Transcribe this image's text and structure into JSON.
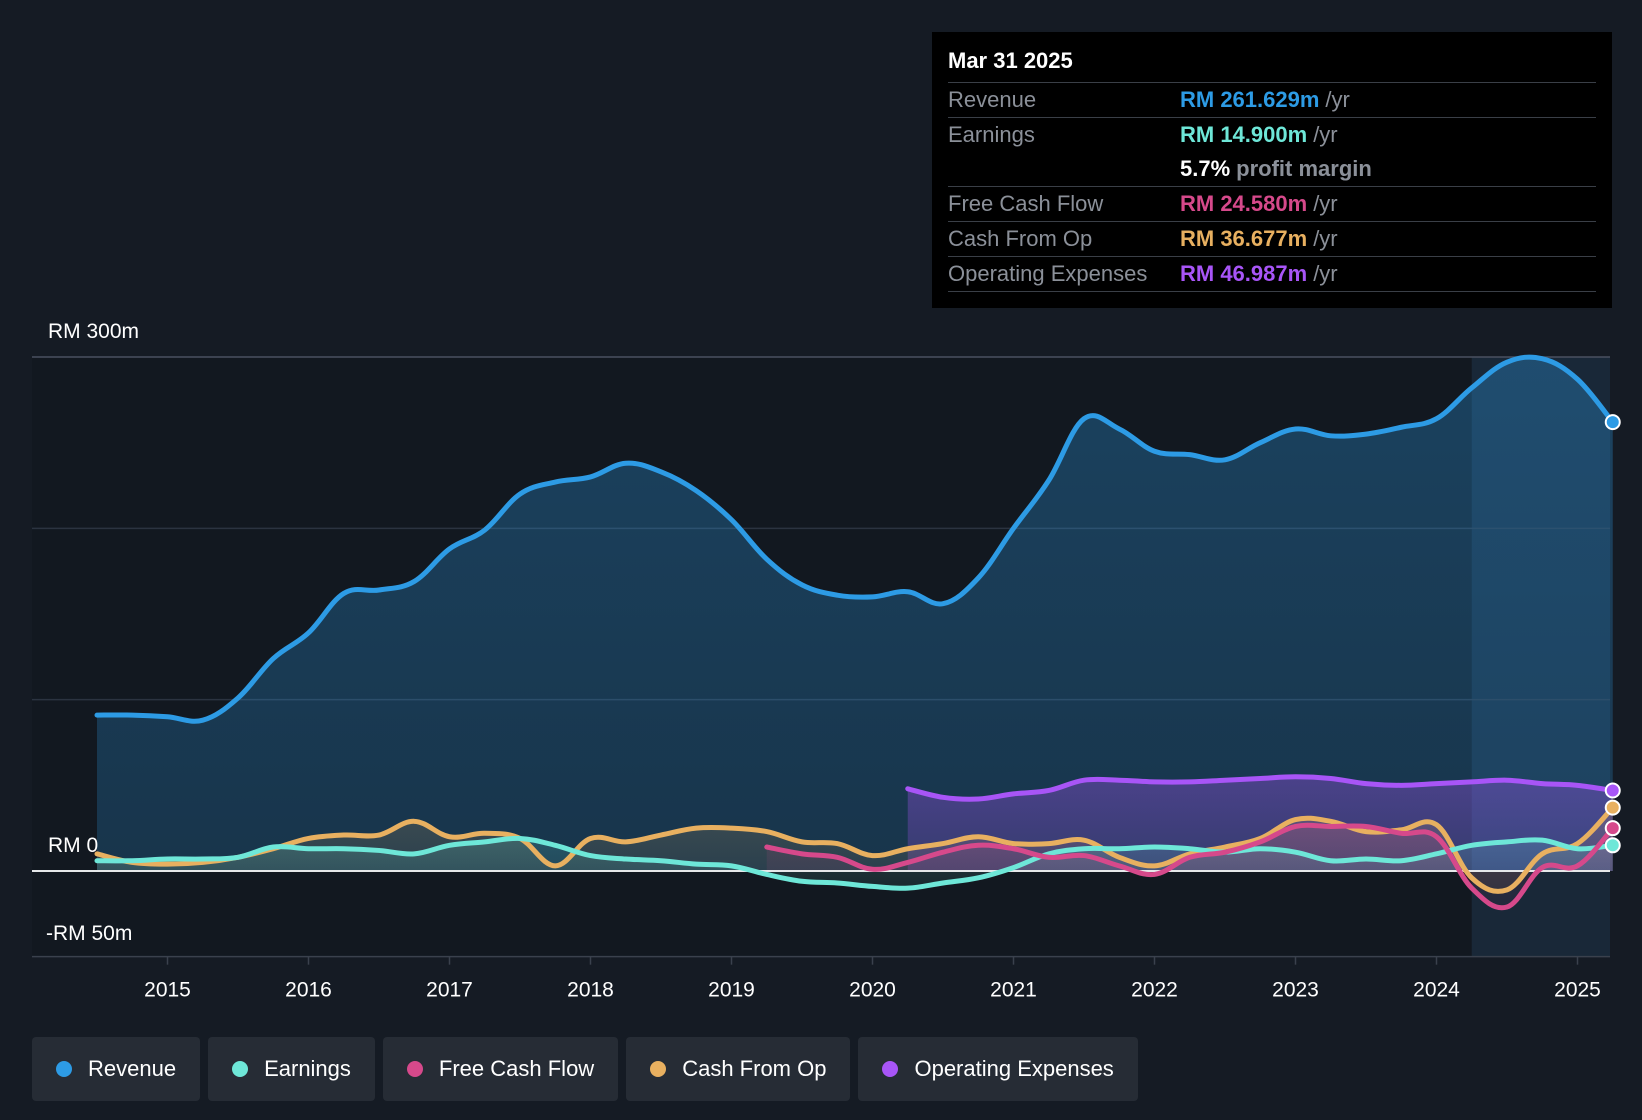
{
  "tooltip": {
    "date": "Mar 31 2025",
    "rows": [
      {
        "label": "Revenue",
        "value": "RM 261.629m",
        "unit": "/yr",
        "color": "#2d9be5"
      },
      {
        "label": "Earnings",
        "value": "RM 14.900m",
        "unit": "/yr",
        "color": "#6ee7d8"
      },
      {
        "label": "",
        "value": "5.7%",
        "unit": "profit margin",
        "color": "#ffffff"
      },
      {
        "label": "Free Cash Flow",
        "value": "RM 24.580m",
        "unit": "/yr",
        "color": "#d6498b"
      },
      {
        "label": "Cash From Op",
        "value": "RM 36.677m",
        "unit": "/yr",
        "color": "#e8b060"
      },
      {
        "label": "Operating Expenses",
        "value": "RM 46.987m",
        "unit": "/yr",
        "color": "#a855f7"
      }
    ]
  },
  "legend": [
    {
      "label": "Revenue",
      "color": "#2d9be5",
      "icon": "revenue-dot-icon"
    },
    {
      "label": "Earnings",
      "color": "#6ee7d8",
      "icon": "earnings-dot-icon"
    },
    {
      "label": "Free Cash Flow",
      "color": "#d6498b",
      "icon": "free-cash-flow-dot-icon"
    },
    {
      "label": "Cash From Op",
      "color": "#e8b060",
      "icon": "cash-from-op-dot-icon"
    },
    {
      "label": "Operating Expenses",
      "color": "#a855f7",
      "icon": "operating-expenses-dot-icon"
    }
  ],
  "chart_data": {
    "type": "area",
    "title": "",
    "xlabel": "",
    "ylabel": "",
    "ylim": [
      -50,
      300
    ],
    "y_tick_labels": [
      "RM 300m",
      "RM 0",
      "-RM 50m"
    ],
    "x_tick_labels": [
      "2015",
      "2016",
      "2017",
      "2018",
      "2019",
      "2020",
      "2021",
      "2022",
      "2023",
      "2024",
      "2025"
    ],
    "highlight_from": 2024.25,
    "series": [
      {
        "name": "Revenue",
        "color": "#2d9be5",
        "points": [
          [
            2014.5,
            91
          ],
          [
            2014.75,
            91
          ],
          [
            2015.0,
            90
          ],
          [
            2015.25,
            88
          ],
          [
            2015.5,
            101
          ],
          [
            2015.75,
            124
          ],
          [
            2016.0,
            139
          ],
          [
            2016.25,
            162
          ],
          [
            2016.5,
            164
          ],
          [
            2016.75,
            169
          ],
          [
            2017.0,
            188
          ],
          [
            2017.25,
            199
          ],
          [
            2017.5,
            220
          ],
          [
            2017.75,
            227
          ],
          [
            2018.0,
            230
          ],
          [
            2018.25,
            238
          ],
          [
            2018.5,
            233
          ],
          [
            2018.75,
            222
          ],
          [
            2019.0,
            205
          ],
          [
            2019.25,
            182
          ],
          [
            2019.5,
            167
          ],
          [
            2019.75,
            161
          ],
          [
            2020.0,
            160
          ],
          [
            2020.25,
            163
          ],
          [
            2020.5,
            156
          ],
          [
            2020.75,
            171
          ],
          [
            2021.0,
            200
          ],
          [
            2021.25,
            228
          ],
          [
            2021.5,
            264
          ],
          [
            2021.75,
            258
          ],
          [
            2022.0,
            245
          ],
          [
            2022.25,
            243
          ],
          [
            2022.5,
            240
          ],
          [
            2022.75,
            250
          ],
          [
            2023.0,
            258
          ],
          [
            2023.25,
            254
          ],
          [
            2023.5,
            255
          ],
          [
            2023.75,
            259
          ],
          [
            2024.0,
            264
          ],
          [
            2024.25,
            282
          ],
          [
            2024.5,
            297
          ],
          [
            2024.75,
            299
          ],
          [
            2025.0,
            287
          ],
          [
            2025.25,
            262
          ]
        ]
      },
      {
        "name": "Earnings",
        "color": "#6ee7d8",
        "points": [
          [
            2014.5,
            6
          ],
          [
            2014.75,
            6
          ],
          [
            2015.0,
            7
          ],
          [
            2015.25,
            7
          ],
          [
            2015.5,
            8
          ],
          [
            2015.75,
            14
          ],
          [
            2016.0,
            13
          ],
          [
            2016.25,
            13
          ],
          [
            2016.5,
            12
          ],
          [
            2016.75,
            10
          ],
          [
            2017.0,
            15
          ],
          [
            2017.25,
            17
          ],
          [
            2017.5,
            19
          ],
          [
            2017.75,
            15
          ],
          [
            2018.0,
            9
          ],
          [
            2018.25,
            7
          ],
          [
            2018.5,
            6
          ],
          [
            2018.75,
            4
          ],
          [
            2019.0,
            3
          ],
          [
            2019.25,
            -2
          ],
          [
            2019.5,
            -6
          ],
          [
            2019.75,
            -7
          ],
          [
            2020.0,
            -9
          ],
          [
            2020.25,
            -10
          ],
          [
            2020.5,
            -7
          ],
          [
            2020.75,
            -4
          ],
          [
            2021.0,
            2
          ],
          [
            2021.25,
            10
          ],
          [
            2021.5,
            13
          ],
          [
            2021.75,
            13
          ],
          [
            2022.0,
            14
          ],
          [
            2022.25,
            13
          ],
          [
            2022.5,
            11
          ],
          [
            2022.75,
            13
          ],
          [
            2023.0,
            11
          ],
          [
            2023.25,
            6
          ],
          [
            2023.5,
            7
          ],
          [
            2023.75,
            6
          ],
          [
            2024.0,
            10
          ],
          [
            2024.25,
            15
          ],
          [
            2024.5,
            17
          ],
          [
            2024.75,
            18
          ],
          [
            2025.0,
            13
          ],
          [
            2025.25,
            15
          ]
        ]
      },
      {
        "name": "Free Cash Flow",
        "color": "#d6498b",
        "points": [
          [
            2019.25,
            14
          ],
          [
            2019.5,
            10
          ],
          [
            2019.75,
            8
          ],
          [
            2020.0,
            1
          ],
          [
            2020.25,
            5
          ],
          [
            2020.5,
            11
          ],
          [
            2020.75,
            15
          ],
          [
            2021.0,
            13
          ],
          [
            2021.25,
            8
          ],
          [
            2021.5,
            9
          ],
          [
            2021.75,
            3
          ],
          [
            2022.0,
            -2
          ],
          [
            2022.25,
            8
          ],
          [
            2022.5,
            11
          ],
          [
            2022.75,
            17
          ],
          [
            2023.0,
            26
          ],
          [
            2023.25,
            26
          ],
          [
            2023.5,
            26
          ],
          [
            2023.75,
            22
          ],
          [
            2024.0,
            20
          ],
          [
            2024.25,
            -10
          ],
          [
            2024.5,
            -21
          ],
          [
            2024.75,
            2
          ],
          [
            2025.0,
            3
          ],
          [
            2025.25,
            25
          ]
        ]
      },
      {
        "name": "Cash From Op",
        "color": "#e8b060",
        "points": [
          [
            2014.5,
            10
          ],
          [
            2014.75,
            5
          ],
          [
            2015.0,
            4
          ],
          [
            2015.25,
            5
          ],
          [
            2015.5,
            8
          ],
          [
            2015.75,
            13
          ],
          [
            2016.0,
            19
          ],
          [
            2016.25,
            21
          ],
          [
            2016.5,
            21
          ],
          [
            2016.75,
            29
          ],
          [
            2017.0,
            20
          ],
          [
            2017.25,
            22
          ],
          [
            2017.5,
            19
          ],
          [
            2017.75,
            3
          ],
          [
            2018.0,
            19
          ],
          [
            2018.25,
            17
          ],
          [
            2018.5,
            21
          ],
          [
            2018.75,
            25
          ],
          [
            2019.0,
            25
          ],
          [
            2019.25,
            23
          ],
          [
            2019.5,
            17
          ],
          [
            2019.75,
            16
          ],
          [
            2020.0,
            9
          ],
          [
            2020.25,
            13
          ],
          [
            2020.5,
            16
          ],
          [
            2020.75,
            20
          ],
          [
            2021.0,
            16
          ],
          [
            2021.25,
            16
          ],
          [
            2021.5,
            18
          ],
          [
            2021.75,
            8
          ],
          [
            2022.0,
            3
          ],
          [
            2022.25,
            10
          ],
          [
            2022.5,
            14
          ],
          [
            2022.75,
            19
          ],
          [
            2023.0,
            30
          ],
          [
            2023.25,
            29
          ],
          [
            2023.5,
            23
          ],
          [
            2023.75,
            24
          ],
          [
            2024.0,
            27
          ],
          [
            2024.25,
            -4
          ],
          [
            2024.5,
            -11
          ],
          [
            2024.75,
            10
          ],
          [
            2025.0,
            16
          ],
          [
            2025.25,
            37
          ]
        ]
      },
      {
        "name": "Operating Expenses",
        "color": "#a855f7",
        "points": [
          [
            2020.25,
            48
          ],
          [
            2020.5,
            43
          ],
          [
            2020.75,
            42
          ],
          [
            2021.0,
            45
          ],
          [
            2021.25,
            47
          ],
          [
            2021.5,
            53
          ],
          [
            2021.75,
            53
          ],
          [
            2022.0,
            52
          ],
          [
            2022.25,
            52
          ],
          [
            2022.5,
            53
          ],
          [
            2022.75,
            54
          ],
          [
            2023.0,
            55
          ],
          [
            2023.25,
            54
          ],
          [
            2023.5,
            51
          ],
          [
            2023.75,
            50
          ],
          [
            2024.0,
            51
          ],
          [
            2024.25,
            52
          ],
          [
            2024.5,
            53
          ],
          [
            2024.75,
            51
          ],
          [
            2025.0,
            50
          ],
          [
            2025.25,
            47
          ]
        ]
      }
    ]
  }
}
